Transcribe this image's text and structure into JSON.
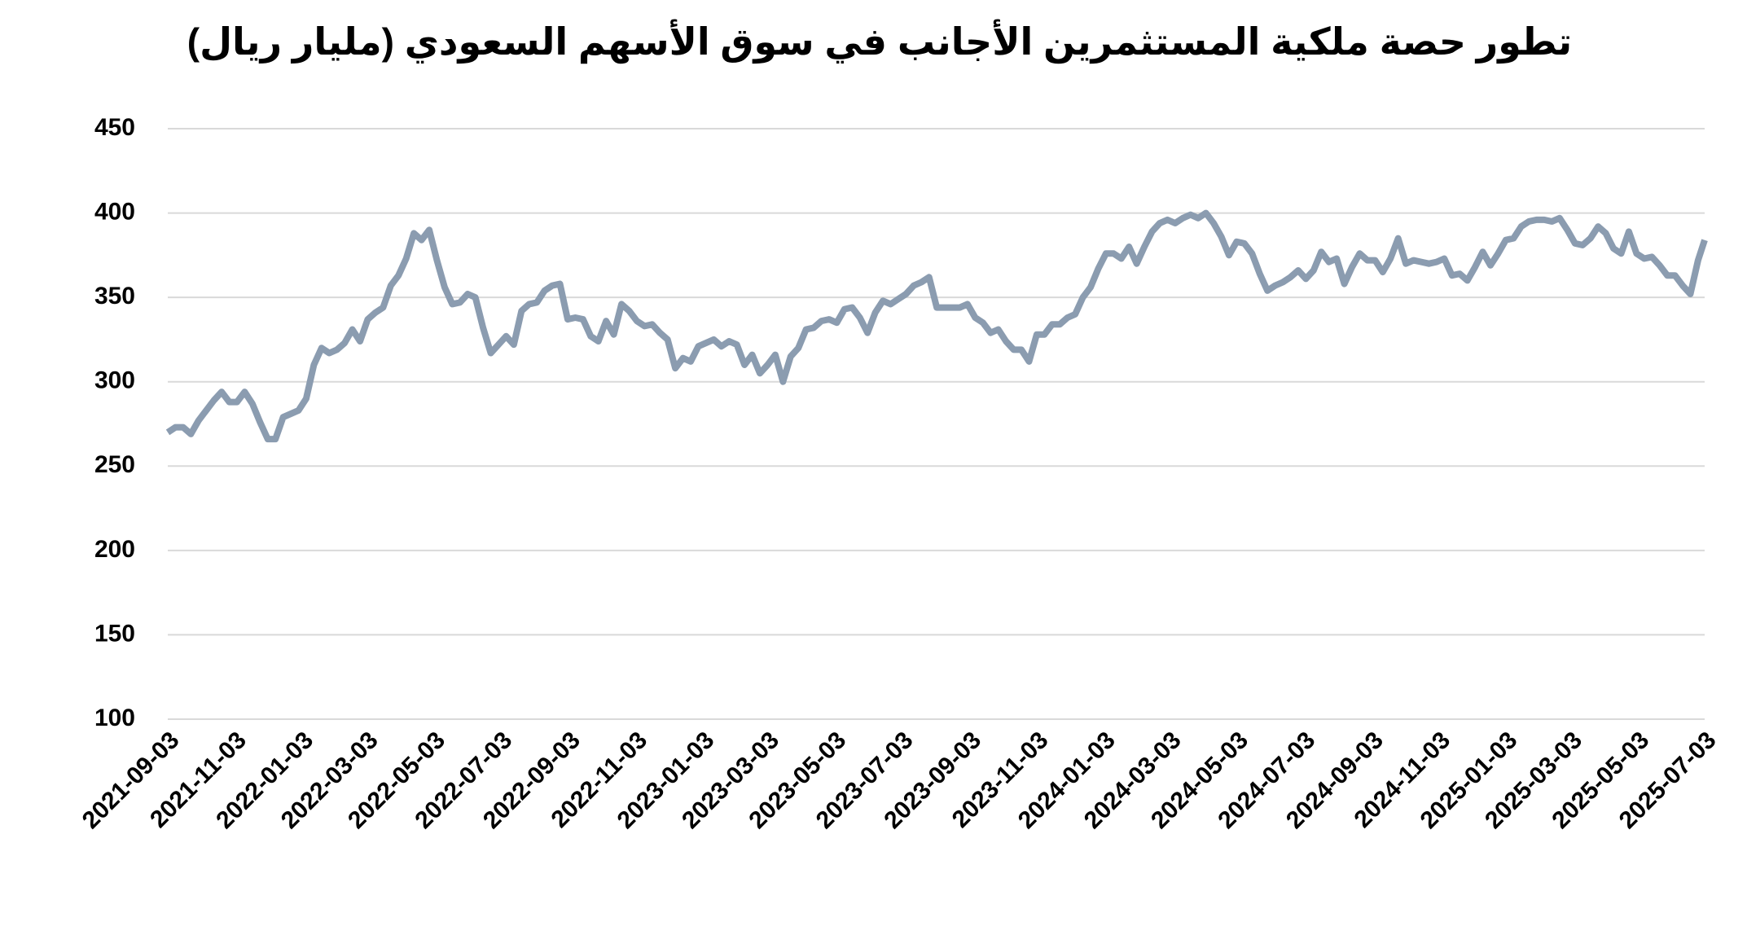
{
  "chart_data": {
    "type": "line",
    "title": "تطور حصة ملكية المستثمرين الأجانب في سوق الأسهم السعودي (مليار ريال)",
    "x": [
      "2021-09-03",
      "2021-09-10",
      "2021-09-17",
      "2021-09-24",
      "2021-10-01",
      "2021-10-08",
      "2021-10-15",
      "2021-10-22",
      "2021-10-29",
      "2021-11-05",
      "2021-11-12",
      "2021-11-19",
      "2021-11-26",
      "2021-12-03",
      "2021-12-10",
      "2021-12-17",
      "2021-12-24",
      "2021-12-31",
      "2022-01-07",
      "2022-01-14",
      "2022-01-21",
      "2022-01-28",
      "2022-02-04",
      "2022-02-11",
      "2022-02-18",
      "2022-02-25",
      "2022-03-04",
      "2022-03-11",
      "2022-03-18",
      "2022-03-25",
      "2022-04-01",
      "2022-04-08",
      "2022-04-15",
      "2022-04-22",
      "2022-04-29",
      "2022-05-06",
      "2022-05-13",
      "2022-05-20",
      "2022-05-27",
      "2022-06-03",
      "2022-06-10",
      "2022-06-17",
      "2022-06-24",
      "2022-07-01",
      "2022-07-08",
      "2022-07-15",
      "2022-07-22",
      "2022-07-29",
      "2022-08-05",
      "2022-08-12",
      "2022-08-19",
      "2022-08-26",
      "2022-09-02",
      "2022-09-09",
      "2022-09-16",
      "2022-09-23",
      "2022-09-30",
      "2022-10-07",
      "2022-10-14",
      "2022-10-21",
      "2022-10-28",
      "2022-11-04",
      "2022-11-11",
      "2022-11-18",
      "2022-11-25",
      "2022-12-02",
      "2022-12-09",
      "2022-12-16",
      "2022-12-23",
      "2022-12-30",
      "2023-01-06",
      "2023-01-13",
      "2023-01-20",
      "2023-01-27",
      "2023-02-03",
      "2023-02-10",
      "2023-02-17",
      "2023-02-24",
      "2023-03-03",
      "2023-03-10",
      "2023-03-17",
      "2023-03-24",
      "2023-03-31",
      "2023-04-07",
      "2023-04-14",
      "2023-04-21",
      "2023-04-28",
      "2023-05-05",
      "2023-05-12",
      "2023-05-19",
      "2023-05-26",
      "2023-06-02",
      "2023-06-09",
      "2023-06-16",
      "2023-06-23",
      "2023-06-30",
      "2023-07-07",
      "2023-07-14",
      "2023-07-21",
      "2023-07-28",
      "2023-08-04",
      "2023-08-11",
      "2023-08-18",
      "2023-08-25",
      "2023-09-01",
      "2023-09-08",
      "2023-09-15",
      "2023-09-22",
      "2023-09-29",
      "2023-10-06",
      "2023-10-13",
      "2023-10-20",
      "2023-10-27",
      "2023-11-03",
      "2023-11-10",
      "2023-11-17",
      "2023-11-24",
      "2023-12-01",
      "2023-12-08",
      "2023-12-15",
      "2023-12-22",
      "2023-12-29",
      "2024-01-05",
      "2024-01-12",
      "2024-01-19",
      "2024-01-26",
      "2024-02-02",
      "2024-02-09",
      "2024-02-16",
      "2024-02-23",
      "2024-03-01",
      "2024-03-08",
      "2024-03-15",
      "2024-03-22",
      "2024-03-29",
      "2024-04-05",
      "2024-04-12",
      "2024-04-19",
      "2024-04-26",
      "2024-05-03",
      "2024-05-10",
      "2024-05-17",
      "2024-05-24",
      "2024-05-31",
      "2024-06-07",
      "2024-06-14",
      "2024-06-21",
      "2024-06-28",
      "2024-07-05",
      "2024-07-12",
      "2024-07-19",
      "2024-07-26",
      "2024-08-02",
      "2024-08-09",
      "2024-08-16",
      "2024-08-23",
      "2024-08-30",
      "2024-09-06",
      "2024-09-13",
      "2024-09-20",
      "2024-09-27",
      "2024-10-04",
      "2024-10-11",
      "2024-10-18",
      "2024-10-25",
      "2024-11-01",
      "2024-11-08",
      "2024-11-15",
      "2024-11-22",
      "2024-11-29",
      "2024-12-06",
      "2024-12-13",
      "2024-12-20",
      "2024-12-27",
      "2025-01-03",
      "2025-01-10",
      "2025-01-17",
      "2025-01-24",
      "2025-01-31",
      "2025-02-07",
      "2025-02-14",
      "2025-02-21",
      "2025-02-28",
      "2025-03-07",
      "2025-03-14",
      "2025-03-21",
      "2025-03-28",
      "2025-04-04",
      "2025-04-11",
      "2025-04-18",
      "2025-04-25",
      "2025-05-02",
      "2025-05-09",
      "2025-05-16",
      "2025-05-23",
      "2025-05-30",
      "2025-06-06",
      "2025-06-13",
      "2025-06-20",
      "2025-06-27",
      "2025-07-03"
    ],
    "values": [
      270,
      273,
      273,
      269,
      277,
      283,
      289,
      294,
      288,
      288,
      294,
      287,
      276,
      266,
      266,
      279,
      281,
      283,
      290,
      310,
      320,
      317,
      319,
      323,
      331,
      324,
      337,
      341,
      344,
      357,
      363,
      373,
      388,
      384,
      390,
      372,
      356,
      346,
      347,
      352,
      350,
      332,
      317,
      322,
      327,
      322,
      342,
      346,
      347,
      354,
      357,
      358,
      337,
      338,
      337,
      327,
      324,
      336,
      328,
      346,
      342,
      336,
      333,
      334,
      329,
      325,
      308,
      314,
      312,
      321,
      323,
      325,
      321,
      324,
      322,
      310,
      316,
      305,
      310,
      316,
      300,
      315,
      320,
      331,
      332,
      336,
      337,
      335,
      343,
      344,
      338,
      329,
      341,
      348,
      346,
      349,
      352,
      357,
      359,
      362,
      344,
      344,
      344,
      344,
      346,
      338,
      335,
      329,
      331,
      324,
      319,
      319,
      312,
      328,
      328,
      334,
      334,
      338,
      340,
      350,
      356,
      367,
      376,
      376,
      373,
      380,
      370,
      380,
      389,
      394,
      396,
      394,
      397,
      399,
      397,
      400,
      394,
      386,
      375,
      383,
      382,
      376,
      364,
      354,
      357,
      359,
      362,
      366,
      361,
      366,
      377,
      371,
      373,
      358,
      368,
      376,
      372,
      372,
      365,
      373,
      385,
      370,
      372,
      371,
      370,
      371,
      373,
      363,
      364,
      360,
      368,
      377,
      369,
      376,
      384,
      385,
      392,
      395,
      396,
      396,
      395,
      397,
      390,
      382,
      381,
      385,
      392,
      388,
      379,
      376,
      389,
      376,
      373,
      374,
      369,
      363,
      363,
      357,
      352,
      372,
      384
    ],
    "color": "#8b9cb0",
    "xlim": [
      "2021-09-03",
      "2025-07-03"
    ],
    "xticks": [
      "2021-09-03",
      "2021-11-03",
      "2022-01-03",
      "2022-03-03",
      "2022-05-03",
      "2022-07-03",
      "2022-09-03",
      "2022-11-03",
      "2023-01-03",
      "2023-03-03",
      "2023-05-03",
      "2023-07-03",
      "2023-09-03",
      "2023-11-03",
      "2024-01-03",
      "2024-03-03",
      "2024-05-03",
      "2024-07-03",
      "2024-09-03",
      "2024-11-03",
      "2025-01-03",
      "2025-03-03",
      "2025-05-03",
      "2025-07-03"
    ],
    "ylim": [
      100,
      450
    ],
    "yticks": [
      100,
      150,
      200,
      250,
      300,
      350,
      400,
      450
    ],
    "grid": true
  }
}
